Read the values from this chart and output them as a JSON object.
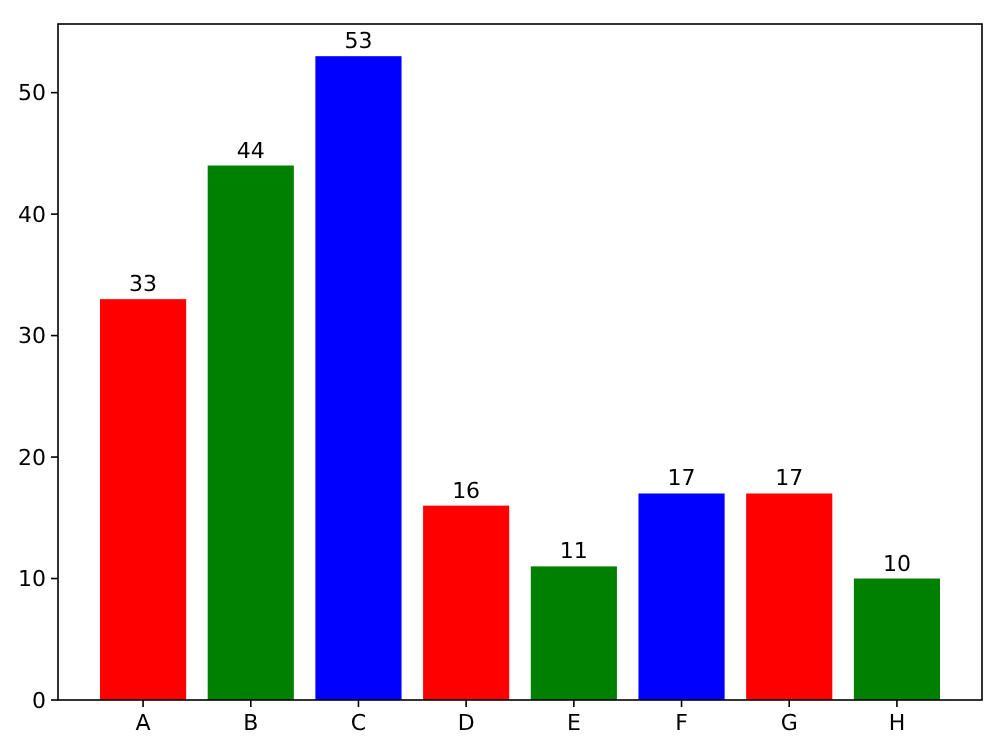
{
  "chart_data": {
    "type": "bar",
    "categories": [
      "A",
      "B",
      "C",
      "D",
      "E",
      "F",
      "G",
      "H"
    ],
    "values": [
      33,
      44,
      53,
      16,
      11,
      17,
      17,
      10
    ],
    "colors": [
      "#ff0000",
      "#008000",
      "#0000ff",
      "#ff0000",
      "#008000",
      "#0000ff",
      "#ff0000",
      "#008000"
    ],
    "ylim": [
      0,
      55.65
    ],
    "yticks": [
      0,
      10,
      20,
      30,
      40,
      50
    ],
    "grid": false,
    "data_labels": true
  }
}
